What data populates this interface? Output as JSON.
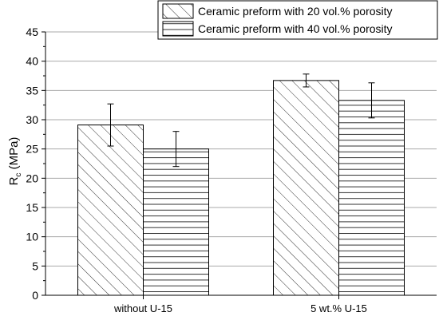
{
  "chart_data": {
    "type": "bar",
    "ylabel_main": "R",
    "ylabel_sub": "c",
    "ylabel_unit": " (MPa)",
    "xlabel": "",
    "ylim": [
      0,
      45
    ],
    "yticks": [
      "0",
      "5",
      "10",
      "15",
      "20",
      "25",
      "30",
      "35",
      "40",
      "45"
    ],
    "categories": [
      "without U-15",
      "5 wt.% U-15"
    ],
    "grid": true,
    "legend_position": "top-right",
    "series": [
      {
        "name": "Ceramic preform with 20 vol.% porosity",
        "pattern": "diagonal-hatch",
        "values": [
          29.1,
          36.7
        ],
        "errors": [
          3.6,
          1.1
        ]
      },
      {
        "name": "Ceramic preform with 40 vol.% porosity",
        "pattern": "horizontal-lines",
        "values": [
          25.0,
          33.3
        ],
        "errors": [
          3.0,
          3.0
        ]
      }
    ]
  }
}
